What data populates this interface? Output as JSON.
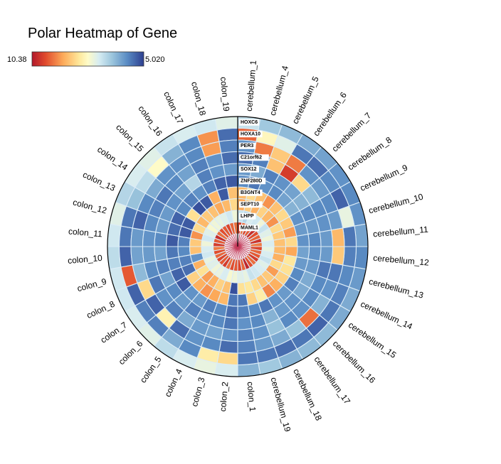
{
  "chart_data": {
    "type": "heatmap",
    "title": "Polar Heatmap of Gene",
    "colorbar": {
      "min_label": "10.38",
      "max_label": "5.020",
      "low": 5.02,
      "high": 10.38
    },
    "categories": [
      "cerebellum_1",
      "cerebellum_4",
      "cerebellum_5",
      "cerebellum_6",
      "cerebellum_7",
      "cerebellum_8",
      "cerebellum_9",
      "cerebellum_10",
      "cerebellum_11",
      "cerebellum_12",
      "cerebellum_13",
      "cerebellum_14",
      "cerebellum_15",
      "cerebellum_16",
      "cerebellum_17",
      "cerebellum_18",
      "cerebellum_19",
      "colon_1",
      "colon_2",
      "colon_3",
      "colon_4",
      "colon_5",
      "colon_6",
      "colon_7",
      "colon_8",
      "colon_9",
      "colon_10",
      "colon_11",
      "colon_12",
      "colon_13",
      "colon_14",
      "colon_15",
      "colon_16",
      "colon_17",
      "colon_18",
      "colon_19"
    ],
    "genes": [
      "HOXC6",
      "HOXA10",
      "PER3",
      "C21orf62",
      "SOX12",
      "ZNF280D",
      "B3GNT4",
      "SEPT10",
      "LHPP",
      "MAML1"
    ],
    "values": [
      [
        7.0,
        6.6,
        6.4,
        6.2,
        6.1,
        5.9,
        5.8,
        5.9,
        6.1,
        5.8,
        6.0,
        6.2,
        6.2,
        6.4,
        6.4,
        6.3,
        6.6,
        6.3,
        7.2,
        7.4,
        7.2,
        6.9,
        7.3,
        7.2,
        7.1,
        7.1,
        6.9,
        7.1,
        7.3,
        6.8,
        7.2,
        7.3,
        7.0,
        7.2,
        7.1,
        7.3
      ],
      [
        9.5,
        7.8,
        7.3,
        5.6,
        5.5,
        5.8,
        5.4,
        7.4,
        5.6,
        5.7,
        5.8,
        5.7,
        5.6,
        5.4,
        5.6,
        5.5,
        5.6,
        5.6,
        8.3,
        8.0,
        5.8,
        6.2,
        5.7,
        5.7,
        5.4,
        9.6,
        5.4,
        5.6,
        5.6,
        6.5,
        6.9,
        7.7,
        6.3,
        5.8,
        9.1,
        5.5
      ],
      [
        5.9,
        9.3,
        8.5,
        9.3,
        5.9,
        6.0,
        5.8,
        6.0,
        8.7,
        8.5,
        5.6,
        5.9,
        6.3,
        9.4,
        6.5,
        6.2,
        6.0,
        5.7,
        5.5,
        5.8,
        5.9,
        5.5,
        7.9,
        5.4,
        8.3,
        6.4,
        6.1,
        6.0,
        5.4,
        5.8,
        6.2,
        5.9,
        5.9,
        5.8,
        9.0,
        5.7
      ],
      [
        5.5,
        5.7,
        8.6,
        9.9,
        8.3,
        6.4,
        5.8,
        5.9,
        6.0,
        6.0,
        5.6,
        5.8,
        5.8,
        5.9,
        5.8,
        6.5,
        5.9,
        5.7,
        5.9,
        6.1,
        6.0,
        6.2,
        5.7,
        5.9,
        5.6,
        5.8,
        6.0,
        5.9,
        5.8,
        5.7,
        5.6,
        5.8,
        6.1,
        5.7,
        5.9,
        5.5
      ],
      [
        6.0,
        6.2,
        5.7,
        5.9,
        6.1,
        6.3,
        5.8,
        6.0,
        5.8,
        5.9,
        6.0,
        6.2,
        6.2,
        5.9,
        6.0,
        6.3,
        5.8,
        5.9,
        5.6,
        5.8,
        5.9,
        5.7,
        6.0,
        5.8,
        6.1,
        5.7,
        6.1,
        5.8,
        6.0,
        6.0,
        5.9,
        6.1,
        6.8,
        5.7,
        5.9,
        6.0
      ],
      [
        5.8,
        5.6,
        5.9,
        5.8,
        6.1,
        6.3,
        5.9,
        6.0,
        5.9,
        6.1,
        6.0,
        5.8,
        5.7,
        6.0,
        5.9,
        5.6,
        5.8,
        5.7,
        5.5,
        5.8,
        5.7,
        6.0,
        5.9,
        5.3,
        5.4,
        5.7,
        5.6,
        5.3,
        5.5,
        5.4,
        5.8,
        5.7,
        5.9,
        5.7,
        5.4,
        5.3
      ],
      [
        8.7,
        8.3,
        8.6,
        9.1,
        8.6,
        8.3,
        8.5,
        9.0,
        8.3,
        8.9,
        8.1,
        8.2,
        8.4,
        8.8,
        9.2,
        8.0,
        8.4,
        5.6,
        5.6,
        8.7,
        8.9,
        9.1,
        8.8,
        8.4,
        5.5,
        5.7,
        5.8,
        5.7,
        5.3,
        5.3,
        8.2,
        5.2,
        5.3,
        8.8,
        5.3,
        8.6
      ],
      [
        8.9,
        8.5,
        8.8,
        8.4,
        8.7,
        9.1,
        8.3,
        8.5,
        8.6,
        8.7,
        8.8,
        8.3,
        9.0,
        8.5,
        8.6,
        8.3,
        8.1,
        8.2,
        5.2,
        8.6,
        8.4,
        8.8,
        9.0,
        8.2,
        8.8,
        5.9,
        8.6,
        8.5,
        9.1,
        8.3,
        8.7,
        8.5,
        8.6,
        8.9,
        8.7,
        8.3
      ],
      [
        7.0,
        6.8,
        7.2,
        7.1,
        7.5,
        7.0,
        7.3,
        7.5,
        7.2,
        7.4,
        7.2,
        7.0,
        7.3,
        7.2,
        7.1,
        7.0,
        7.4,
        7.3,
        7.5,
        7.6,
        7.2,
        7.4,
        7.5,
        7.3,
        7.4,
        7.1,
        7.2,
        7.5,
        7.1,
        7.3,
        7.6,
        7.5,
        7.4,
        7.3,
        7.1,
        7.5
      ],
      [
        9.9,
        9.4,
        9.8,
        9.6,
        10.1,
        9.7,
        9.5,
        10.0,
        9.3,
        9.8,
        9.5,
        9.6,
        9.9,
        9.4,
        9.7,
        10.2,
        9.5,
        9.8,
        9.6,
        9.7,
        9.4,
        9.9,
        9.6,
        9.8,
        9.5,
        9.7,
        9.3,
        9.9,
        9.6,
        10.1,
        9.4,
        9.7,
        9.6,
        9.8,
        9.5,
        9.4
      ]
    ],
    "grid": false,
    "legend": "colorbar top-left"
  }
}
